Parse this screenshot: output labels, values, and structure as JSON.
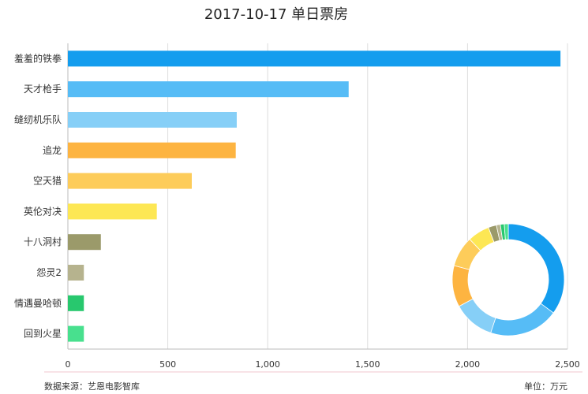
{
  "chart_data": {
    "type": "bar",
    "orientation": "horizontal",
    "title": "2017-10-17 单日票房",
    "categories": [
      "羞羞的铁拳",
      "天才枪手",
      "缝纫机乐队",
      "追龙",
      "空天猎",
      "英伦对决",
      "十八洞村",
      "怨灵2",
      "情遇曼哈顿",
      "回到火星"
    ],
    "values": [
      2465,
      1405,
      845,
      840,
      620,
      445,
      165,
      80,
      80,
      80
    ],
    "colors": [
      "#149dee",
      "#56bcf6",
      "#86cff7",
      "#fdb441",
      "#fdcc5a",
      "#fde754",
      "#9b9a6a",
      "#b6b38e",
      "#28c86e",
      "#48e08e"
    ],
    "xlim": [
      0,
      2500
    ],
    "xticks": [
      0,
      500,
      1000,
      1500,
      2000,
      2500
    ],
    "xtick_labels": [
      "0",
      "500",
      "1,000",
      "1,500",
      "2,000",
      "2,500"
    ],
    "grid": true,
    "inset_donut": {
      "type": "pie",
      "style": "donut",
      "values": [
        2465,
        1405,
        845,
        840,
        620,
        445,
        165,
        80,
        80,
        80
      ]
    }
  },
  "footer": {
    "source": "数据来源：艺恩电影智库",
    "unit": "单位：万元"
  }
}
